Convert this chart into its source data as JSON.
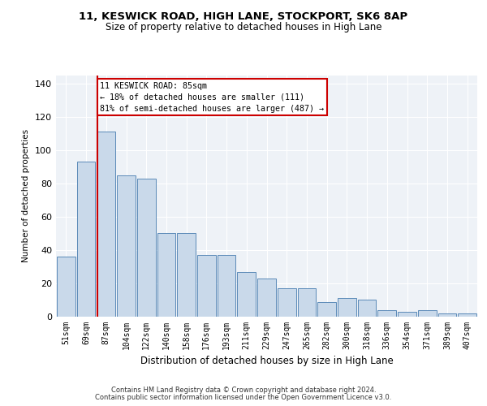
{
  "title": "11, KESWICK ROAD, HIGH LANE, STOCKPORT, SK6 8AP",
  "subtitle": "Size of property relative to detached houses in High Lane",
  "xlabel": "Distribution of detached houses by size in High Lane",
  "ylabel": "Number of detached properties",
  "categories": [
    "51sqm",
    "69sqm",
    "87sqm",
    "104sqm",
    "122sqm",
    "140sqm",
    "158sqm",
    "176sqm",
    "193sqm",
    "211sqm",
    "229sqm",
    "247sqm",
    "265sqm",
    "282sqm",
    "300sqm",
    "318sqm",
    "336sqm",
    "354sqm",
    "371sqm",
    "389sqm",
    "407sqm"
  ],
  "values": [
    36,
    93,
    111,
    85,
    83,
    50,
    50,
    37,
    37,
    27,
    23,
    17,
    17,
    9,
    11,
    10,
    4,
    3,
    4,
    2,
    2
  ],
  "bar_color": "#c9d9ea",
  "bar_edge_color": "#5a8ab8",
  "vline_x": 1.55,
  "vline_color": "#cc0000",
  "annotation_text": "11 KESWICK ROAD: 85sqm\n← 18% of detached houses are smaller (111)\n81% of semi-detached houses are larger (487) →",
  "annotation_box_edge": "#cc0000",
  "ylim": [
    0,
    145
  ],
  "yticks": [
    0,
    20,
    40,
    60,
    80,
    100,
    120,
    140
  ],
  "footer_line1": "Contains HM Land Registry data © Crown copyright and database right 2024.",
  "footer_line2": "Contains public sector information licensed under the Open Government Licence v3.0.",
  "bg_color": "#ffffff",
  "plot_bg_color": "#eef2f7"
}
